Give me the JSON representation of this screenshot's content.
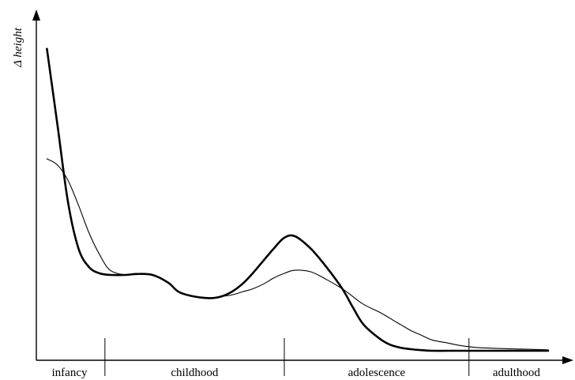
{
  "chart_data": {
    "type": "line",
    "ylabel": "Δ height",
    "xlabel": "",
    "x_range": [
      0,
      100
    ],
    "y_range": [
      0,
      100
    ],
    "stages": [
      {
        "label": "infancy",
        "start": 0,
        "end": 13
      },
      {
        "label": "childhood",
        "start": 13,
        "end": 47
      },
      {
        "label": "adolescence",
        "start": 47,
        "end": 82
      },
      {
        "label": "adulthood",
        "start": 82,
        "end": 100
      }
    ],
    "series": [
      {
        "style": "thick",
        "x": [
          2,
          4,
          6,
          8,
          10,
          12,
          14,
          17,
          19,
          22,
          25,
          27,
          30,
          33,
          35,
          37,
          39,
          41,
          43,
          45,
          47,
          49,
          52,
          55,
          58,
          60,
          62,
          65,
          67,
          69,
          71,
          73,
          75,
          78,
          80,
          82,
          84,
          87,
          90,
          93,
          95,
          97
        ],
        "y": [
          97.5,
          73,
          48,
          33,
          27,
          25,
          24.5,
          24.5,
          24.8,
          24.5,
          22,
          19,
          17.5,
          17,
          17.5,
          19,
          21.5,
          25,
          29,
          33,
          36.5,
          37,
          33,
          27,
          20,
          14,
          8.5,
          4,
          2,
          1,
          0.5,
          0.2,
          0,
          0,
          0,
          0,
          0,
          0,
          0,
          0,
          0,
          0
        ]
      },
      {
        "style": "thin",
        "x": [
          2,
          4,
          6,
          8,
          10,
          12,
          14,
          17,
          19,
          22,
          25,
          27,
          30,
          33,
          35,
          37,
          39,
          41,
          43,
          45,
          47,
          49,
          52,
          55,
          58,
          60,
          62,
          65,
          67,
          69,
          71,
          73,
          75,
          78,
          80,
          82,
          84,
          87,
          90,
          93,
          95,
          97
        ],
        "y": [
          62,
          60,
          55,
          47,
          38,
          31,
          26,
          24.5,
          24.8,
          24.5,
          22,
          19,
          17.5,
          17,
          17.5,
          18,
          19,
          20,
          21.5,
          23.5,
          25,
          26,
          25.5,
          23,
          20,
          17.5,
          15,
          12.5,
          10.5,
          8.5,
          6.5,
          5,
          3.5,
          2.5,
          1.8,
          1.3,
          1,
          0.8,
          0.6,
          0.5,
          0.4,
          0.3
        ]
      }
    ],
    "grid": false,
    "legend": "none"
  }
}
